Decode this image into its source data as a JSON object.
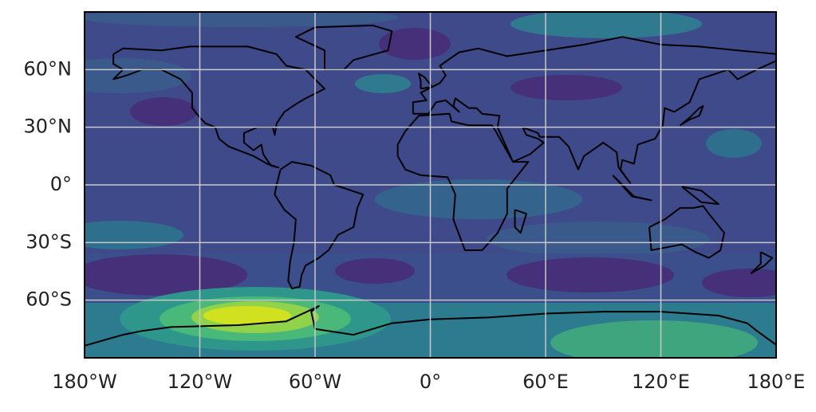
{
  "chart_data": {
    "type": "map",
    "xlim": [
      -180,
      180
    ],
    "ylim": [
      -90,
      90
    ],
    "xticks": [
      {
        "value": -180,
        "label": "180°W"
      },
      {
        "value": -120,
        "label": "120°W"
      },
      {
        "value": -60,
        "label": "60°W"
      },
      {
        "value": 0,
        "label": "0°"
      },
      {
        "value": 60,
        "label": "60°E"
      },
      {
        "value": 120,
        "label": "120°E"
      },
      {
        "value": 180,
        "label": "180°E"
      }
    ],
    "yticks": [
      {
        "value": -60,
        "label": "60°S"
      },
      {
        "value": -30,
        "label": "30°S"
      },
      {
        "value": 0,
        "label": "0°"
      },
      {
        "value": 30,
        "label": "30°N"
      },
      {
        "value": 60,
        "label": "60°N"
      }
    ],
    "grid": true
  }
}
